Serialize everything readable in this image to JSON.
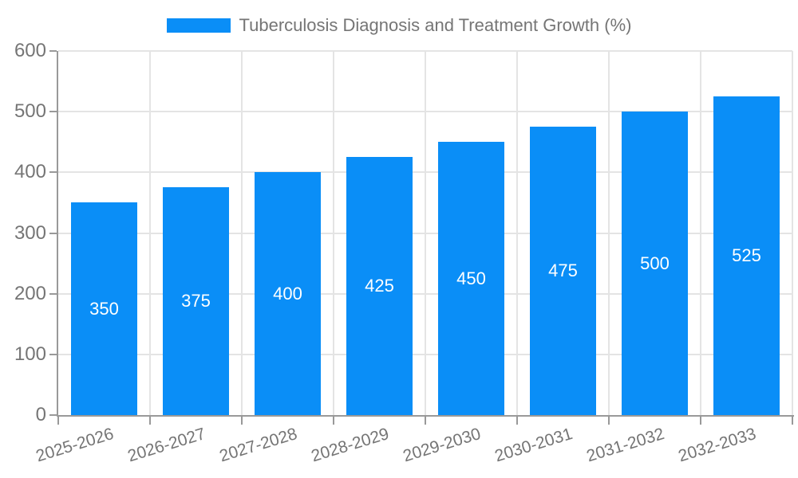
{
  "legend": {
    "label": "Tuberculosis Diagnosis and Treatment Growth (%)"
  },
  "chart_data": {
    "type": "bar",
    "title": "Tuberculosis Diagnosis and Treatment Growth (%)",
    "categories": [
      "2025-2026",
      "2026-2027",
      "2027-2028",
      "2028-2029",
      "2029-2030",
      "2030-2031",
      "2031-2032",
      "2032-2033"
    ],
    "values": [
      350,
      375,
      400,
      425,
      450,
      475,
      500,
      525
    ],
    "bar_labels": [
      "350",
      "375",
      "400",
      "425",
      "450",
      "475",
      "500",
      "525"
    ],
    "xlabel": "",
    "ylabel": "",
    "ylim": [
      0,
      600
    ],
    "yticks": [
      0,
      100,
      200,
      300,
      400,
      500,
      600
    ],
    "grid": true,
    "legend_position": "top-center",
    "colors": {
      "bar": "#0A8EF7",
      "axis": "#999999",
      "grid": "#E4E4E4",
      "tick_text": "#757575",
      "bar_label_text": "#FFFFFF",
      "background": "#FFFFFF"
    }
  }
}
